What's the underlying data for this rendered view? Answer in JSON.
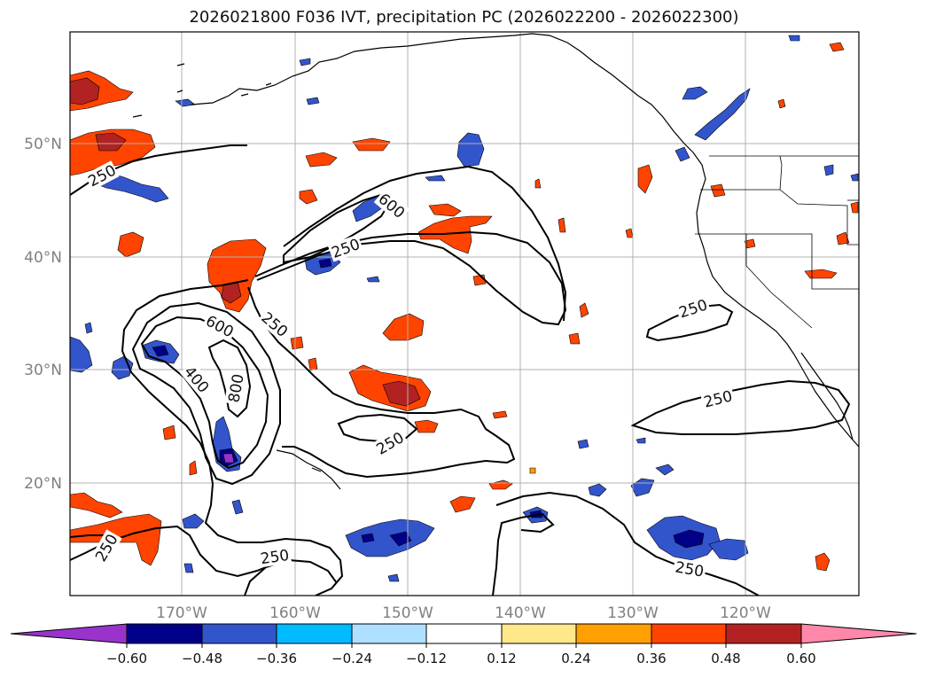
{
  "title": "2026021800 F036 IVT, precipitation PC (2026022200 - 2026022300)",
  "lat_labels": [
    "50°N",
    "40°N",
    "30°N",
    "20°N"
  ],
  "lon_labels": [
    "170°W",
    "160°W",
    "150°W",
    "140°W",
    "130°W",
    "120°W"
  ],
  "colorbar": {
    "ticks": [
      "−0.60",
      "−0.48",
      "−0.36",
      "−0.24",
      "−0.12",
      "0.12",
      "0.24",
      "0.36",
      "0.48",
      "0.60"
    ],
    "colors": [
      "#9933cc",
      "#000088",
      "#3355cc",
      "#00bbff",
      "#b0e0ff",
      "#ffffff",
      "#ffe88a",
      "#ffa000",
      "#ff4400",
      "#b22222",
      "#ff88aa"
    ]
  },
  "contour_labels": [
    "250",
    "250",
    "250",
    "250",
    "250",
    "250",
    "250",
    "250",
    "600",
    "600",
    "400",
    "800"
  ],
  "colors": {
    "frame": "#000000",
    "grid": "#b0b0b0",
    "tick_label": "#808080"
  }
}
